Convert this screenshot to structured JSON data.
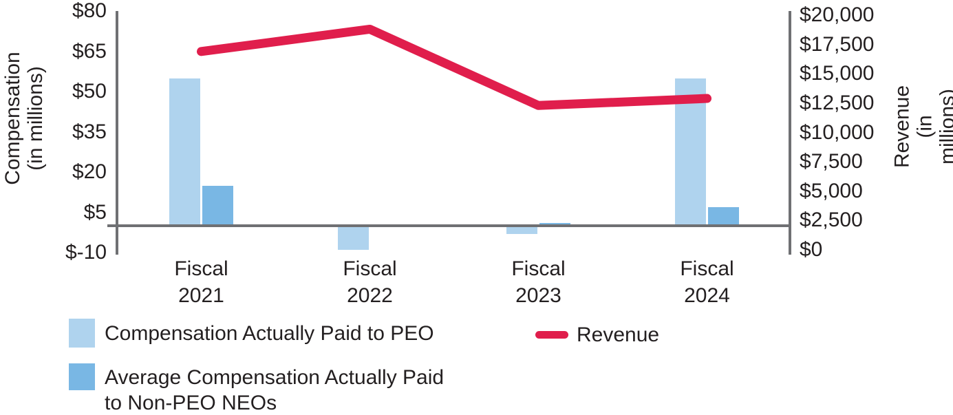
{
  "chart_data": {
    "type": "combo-bar-line",
    "categories": [
      "Fiscal 2021",
      "Fiscal 2022",
      "Fiscal 2023",
      "Fiscal 2024"
    ],
    "bar_series": [
      {
        "name": "Compensation Actually Paid to PEO",
        "axis": "left",
        "color": "#AFD3EE",
        "values": [
          55,
          -9,
          -3,
          55
        ]
      },
      {
        "name": "Average Compensation Actually Paid to Non-PEO NEOs",
        "axis": "left",
        "color": "#79B7E4",
        "values": [
          15,
          0,
          1,
          7
        ]
      }
    ],
    "line_series": [
      {
        "name": "Revenue",
        "axis": "right",
        "color": "#E01E4C",
        "values": [
          16900,
          18800,
          12300,
          12900
        ]
      }
    ],
    "left_axis": {
      "title": "Compensation\n(in millions)",
      "min": -10,
      "max": 80,
      "tick_labels": [
        "$80",
        "$65",
        "$50",
        "$35",
        "$20",
        "$5",
        "$-10"
      ],
      "tick_values": [
        80,
        65,
        50,
        35,
        20,
        5,
        -10
      ]
    },
    "right_axis": {
      "title": "Revenue\n(in millions)",
      "min": 0,
      "max": 20000,
      "tick_labels": [
        "$20,000",
        "$17,500",
        "$15,000",
        "$12,500",
        "$10,000",
        "$7,500",
        "$5,000",
        "$2,500",
        "$0"
      ],
      "tick_values": [
        20000,
        17500,
        15000,
        12500,
        10000,
        7500,
        5000,
        2500,
        0
      ]
    },
    "legend": {
      "peo_label": "Compensation Actually Paid to PEO",
      "non_peo_label": "Average Compensation Actually Paid\nto Non-PEO NEOs",
      "revenue_label": "Revenue"
    },
    "layout_hints": {
      "grid": "off",
      "legend_position": "bottom-left",
      "baseline_value_left_axis": 0
    },
    "colors": {
      "bar_light_blue": "#AFD3EE",
      "bar_blue": "#79B7E4",
      "line_red": "#E01E4C",
      "axis_gray": "#6F7073",
      "text": "#231F20"
    }
  }
}
